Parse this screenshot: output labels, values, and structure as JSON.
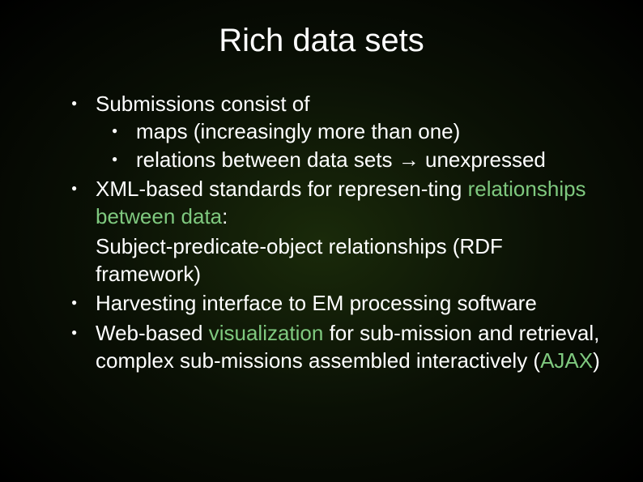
{
  "colors": {
    "background_center": "#1a2a0a",
    "background_mid": "#0a1005",
    "background_edge": "#000000",
    "text": "#ffffff",
    "highlight": "#7fc97f",
    "bullet": "#ffffff"
  },
  "typography": {
    "title_fontsize": 40,
    "body_fontsize": 26,
    "font_family": "Arial"
  },
  "title": "Rich data sets",
  "items": {
    "b1": "Submissions consist of",
    "b1a": "maps (increasingly more than one)",
    "b1b": "relations between data sets → unexpressed",
    "b2_pre": "XML-based standards for represen-ting ",
    "b2_hl": "relationships between data",
    "b2_post": ":",
    "rdf1": "Subject-predicate-object relationships (RDF framework)",
    "b3": "Harvesting interface to EM processing software",
    "b4_pre": "Web-based ",
    "b4_hl1": "visualization",
    "b4_mid": " for sub-mission and retrieval, complex sub-missions assembled interactively (",
    "b4_hl2": "AJAX",
    "b4_post": ")"
  }
}
